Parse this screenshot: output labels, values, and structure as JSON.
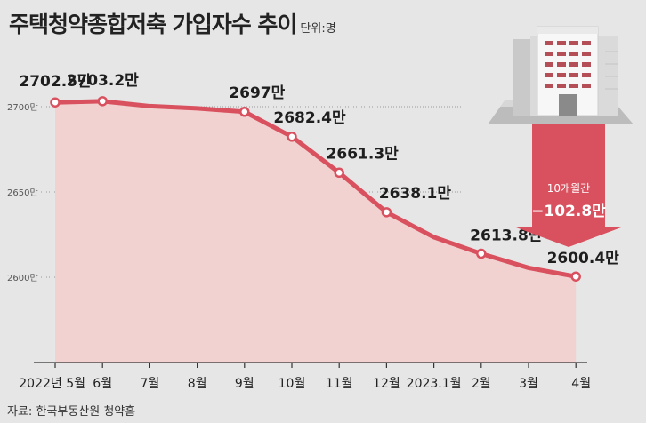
{
  "title": "주택청약종합저축 가입자수 추이",
  "unit": "단위:명",
  "source": {
    "prefix": "자료",
    "text": "한국부동산원 청약홈"
  },
  "annotation": {
    "period": "10개월간",
    "change": "−102.8만"
  },
  "colors": {
    "line": "#d9505e",
    "area": "#f2d2d0",
    "arrow": "#d9505e",
    "background": "#e6e6e6",
    "point_fill": "#ffffff"
  },
  "chart_data": {
    "type": "line",
    "x": [
      "2022년 5월",
      "6월",
      "7월",
      "8월",
      "9월",
      "10월",
      "11월",
      "12월",
      "2023.1월",
      "2월",
      "3월",
      "4월"
    ],
    "values": [
      2702.5,
      2703.2,
      2700.3,
      2699,
      2697,
      2682.4,
      2661.3,
      2638.1,
      2623.5,
      2613.8,
      2605.5,
      2600.4
    ],
    "point_labels": [
      "2702.5만",
      "2703.2만",
      null,
      null,
      "2697만",
      "2682.4만",
      "2661.3만",
      "2638.1만",
      null,
      "2613.8만",
      null,
      "2600.4만"
    ],
    "marked": [
      true,
      true,
      false,
      false,
      true,
      true,
      true,
      true,
      false,
      true,
      false,
      true
    ],
    "yticks": [
      2700,
      2650,
      2600
    ],
    "ytick_labels": [
      "2700만",
      "2650만",
      "2600만"
    ],
    "ylim": [
      2550,
      2715
    ],
    "grid": "horizontal dotted"
  }
}
